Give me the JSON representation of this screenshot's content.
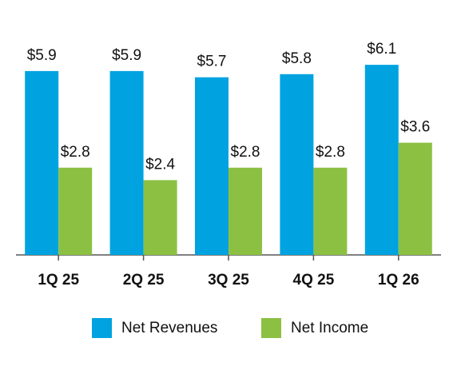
{
  "chart_data": {
    "type": "bar",
    "categories": [
      "1Q 25",
      "2Q 25",
      "3Q 25",
      "4Q 25",
      "1Q 26"
    ],
    "series": [
      {
        "name": "Net Revenues",
        "color": "#00a3e0",
        "values": [
          5.9,
          5.9,
          5.7,
          5.8,
          6.1
        ],
        "value_labels": [
          "$5.9",
          "$5.9",
          "$5.7",
          "$5.8",
          "$6.1"
        ]
      },
      {
        "name": "Net Income",
        "color": "#8cc043",
        "values": [
          2.8,
          2.4,
          2.8,
          2.8,
          3.6
        ],
        "value_labels": [
          "$2.8",
          "$2.4",
          "$2.8",
          "$2.8",
          "$3.6"
        ]
      }
    ],
    "legend": "bottom"
  }
}
